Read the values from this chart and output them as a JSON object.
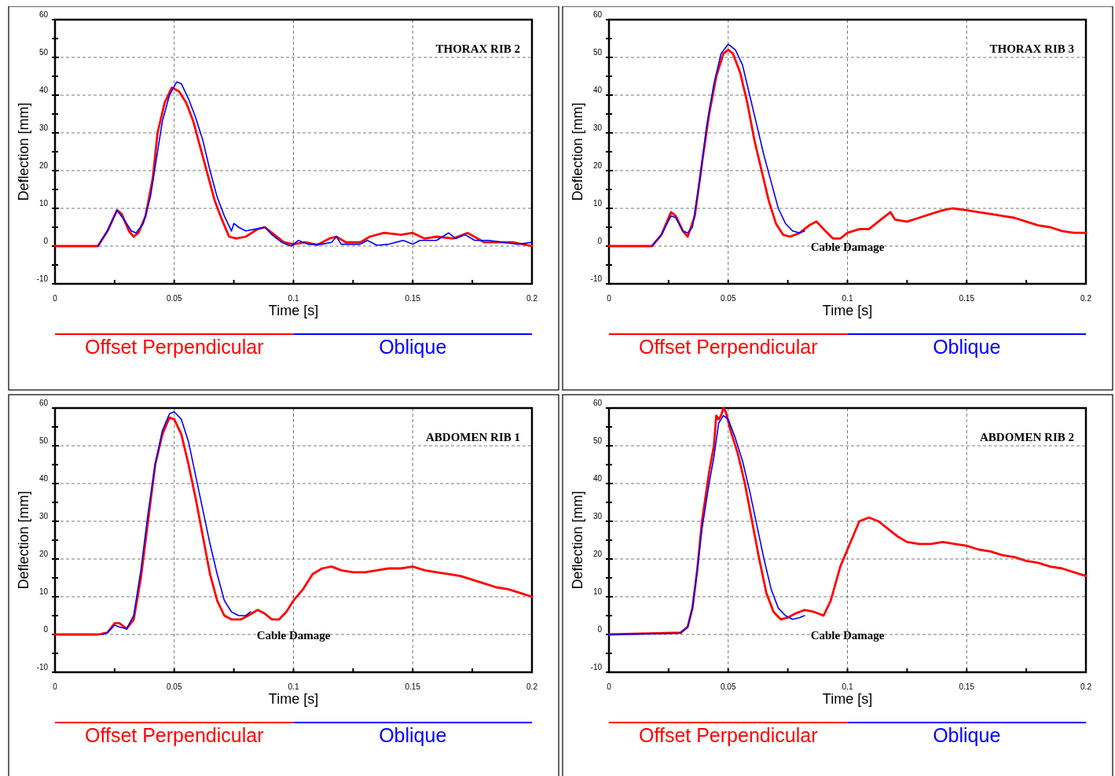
{
  "chart_data": [
    {
      "type": "line",
      "title": "THORAX RIB 2",
      "xlabel": "Time [s]",
      "ylabel": "Deflection [mm]",
      "xlim": [
        0,
        0.2
      ],
      "ylim": [
        -10,
        60
      ],
      "xticks": [
        0,
        {
          "value": 0.025,
          "label": null
        },
        0.05,
        {
          "value": 0.075,
          "label": null
        },
        0.1,
        {
          "value": 0.125,
          "label": null
        },
        0.15,
        {
          "value": 0.175,
          "label": null
        },
        0.2
      ],
      "yticks": [
        -10,
        {
          "value": -5,
          "label": null
        },
        0,
        {
          "value": 5,
          "label": null
        },
        10,
        {
          "value": 15,
          "label": null
        },
        20,
        {
          "value": 25,
          "label": null
        },
        30,
        {
          "value": 35,
          "label": null
        },
        40,
        {
          "value": 45,
          "label": null
        },
        50,
        {
          "value": 55,
          "label": null
        },
        60
      ],
      "grid": true,
      "legend": "bottom",
      "series": [
        {
          "name": "Offset Perpendicular",
          "color": "#ff0000",
          "x": [
            0,
            0.018,
            0.022,
            0.026,
            0.028,
            0.031,
            0.033,
            0.035,
            0.038,
            0.041,
            0.043,
            0.046,
            0.049,
            0.052,
            0.055,
            0.058,
            0.061,
            0.064,
            0.067,
            0.07,
            0.073,
            0.076,
            0.08,
            0.085,
            0.088,
            0.092,
            0.096,
            0.1,
            0.105,
            0.11,
            0.115,
            0.118,
            0.122,
            0.128,
            0.132,
            0.138,
            0.145,
            0.15,
            0.155,
            0.16,
            0.167,
            0.173,
            0.18,
            0.188,
            0.192,
            0.2
          ],
          "values": [
            0,
            0,
            4,
            9.5,
            8.5,
            4,
            2.5,
            3.5,
            8,
            18,
            30,
            38,
            42,
            41,
            38,
            33,
            26,
            19,
            12,
            7,
            2.5,
            2,
            2.5,
            4.5,
            5,
            3,
            1,
            0.5,
            1,
            0.3,
            2,
            2.5,
            1,
            1,
            2.5,
            3.5,
            3,
            3.5,
            2,
            2.5,
            2,
            3.5,
            1,
            1,
            1,
            0
          ]
        },
        {
          "name": "Oblique",
          "color": "#0000ff",
          "x": [
            0.018,
            0.022,
            0.026,
            0.029,
            0.032,
            0.034,
            0.037,
            0.04,
            0.043,
            0.045,
            0.048,
            0.051,
            0.053,
            0.056,
            0.059,
            0.062,
            0.065,
            0.068,
            0.071,
            0.074,
            0.075,
            0.077,
            0.08,
            0.084,
            0.088,
            0.091,
            0.095,
            0.099,
            0.102,
            0.106,
            0.112,
            0.116,
            0.118,
            0.12,
            0.128,
            0.131,
            0.135,
            0.14,
            0.146,
            0.15,
            0.153,
            0.16,
            0.165,
            0.168,
            0.172,
            0.176,
            0.182,
            0.188,
            0.194,
            0.2
          ],
          "values": [
            0,
            4,
            9.5,
            7,
            4,
            3.5,
            6,
            13,
            25,
            33,
            40,
            43.5,
            43,
            39,
            34,
            28,
            20,
            13,
            8,
            4,
            6,
            5,
            4,
            4.5,
            5,
            3,
            1,
            0,
            1.5,
            0.5,
            0.5,
            1,
            2.5,
            0.5,
            0.5,
            1.5,
            0.2,
            0.5,
            1.5,
            0.5,
            1.5,
            1.5,
            3.5,
            2,
            3,
            1.5,
            1.5,
            1,
            0.5,
            1
          ]
        }
      ]
    },
    {
      "type": "line",
      "title": "THORAX RIB 3",
      "xlabel": "Time [s]",
      "ylabel": "Deflection [mm]",
      "xlim": [
        0,
        0.2
      ],
      "ylim": [
        -10,
        60
      ],
      "xticks": [
        0,
        {
          "value": 0.025,
          "label": null
        },
        0.05,
        {
          "value": 0.075,
          "label": null
        },
        0.1,
        {
          "value": 0.125,
          "label": null
        },
        0.15,
        {
          "value": 0.175,
          "label": null
        },
        0.2
      ],
      "yticks": [
        -10,
        {
          "value": -5,
          "label": null
        },
        0,
        {
          "value": 5,
          "label": null
        },
        10,
        {
          "value": 15,
          "label": null
        },
        20,
        {
          "value": 25,
          "label": null
        },
        30,
        {
          "value": 35,
          "label": null
        },
        40,
        {
          "value": 45,
          "label": null
        },
        50,
        {
          "value": 55,
          "label": null
        },
        60
      ],
      "grid": true,
      "legend": "bottom",
      "annotations": [
        "Cable Damage"
      ],
      "series": [
        {
          "name": "Offset Perpendicular",
          "color": "#ff0000",
          "x": [
            0,
            0.018,
            0.022,
            0.026,
            0.028,
            0.031,
            0.033,
            0.036,
            0.039,
            0.042,
            0.045,
            0.048,
            0.05,
            0.052,
            0.055,
            0.058,
            0.061,
            0.064,
            0.067,
            0.07,
            0.073,
            0.076,
            0.08,
            0.084,
            0.087,
            0.09,
            0.094,
            0.097,
            0.1,
            0.105,
            0.109,
            0.114,
            0.118,
            0.12,
            0.125,
            0.13,
            0.135,
            0.14,
            0.144,
            0.15,
            0.155,
            0.16,
            0.165,
            0.17,
            0.175,
            0.18,
            0.185,
            0.19,
            0.195,
            0.2
          ],
          "values": [
            0,
            0,
            3,
            9,
            8,
            4,
            2.5,
            8,
            22,
            35,
            45,
            51,
            52,
            51,
            46,
            38,
            28,
            20,
            12,
            6,
            3,
            2.5,
            3.5,
            5.5,
            6.5,
            4.5,
            2,
            2,
            3.5,
            4.5,
            4.5,
            7,
            9,
            7,
            6.5,
            7.5,
            8.5,
            9.5,
            10,
            9.5,
            9,
            8.5,
            8,
            7.5,
            6.5,
            5.5,
            5,
            4,
            3.5,
            3.5
          ]
        },
        {
          "name": "Oblique",
          "color": "#0000ff",
          "x": [
            0.018,
            0.022,
            0.026,
            0.028,
            0.031,
            0.033,
            0.035,
            0.038,
            0.041,
            0.044,
            0.047,
            0.05,
            0.053,
            0.056,
            0.059,
            0.062,
            0.065,
            0.068,
            0.071,
            0.074,
            0.077,
            0.08,
            0.082
          ],
          "values": [
            0,
            3,
            8,
            7.5,
            4,
            3.5,
            5,
            17,
            32,
            43,
            51,
            53.5,
            52,
            48,
            40,
            32,
            24,
            17,
            10,
            6,
            4,
            3.5,
            4
          ]
        }
      ]
    },
    {
      "type": "line",
      "title": "ABDOMEN RIB 1",
      "xlabel": "Time [s]",
      "ylabel": "Deflection [mm]",
      "xlim": [
        0,
        0.2
      ],
      "ylim": [
        -10,
        60
      ],
      "xticks": [
        0,
        {
          "value": 0.025,
          "label": null
        },
        0.05,
        {
          "value": 0.075,
          "label": null
        },
        0.1,
        {
          "value": 0.125,
          "label": null
        },
        0.15,
        {
          "value": 0.175,
          "label": null
        },
        0.2
      ],
      "yticks": [
        -10,
        {
          "value": -5,
          "label": null
        },
        0,
        {
          "value": 5,
          "label": null
        },
        10,
        {
          "value": 15,
          "label": null
        },
        20,
        {
          "value": 25,
          "label": null
        },
        30,
        {
          "value": 35,
          "label": null
        },
        40,
        {
          "value": 45,
          "label": null
        },
        50,
        {
          "value": 55,
          "label": null
        },
        60
      ],
      "grid": true,
      "legend": "bottom",
      "annotations": [
        "Cable Damage"
      ],
      "series": [
        {
          "name": "Offset Perpendicular",
          "color": "#ff0000",
          "x": [
            0,
            0.018,
            0.022,
            0.025,
            0.027,
            0.03,
            0.033,
            0.036,
            0.039,
            0.042,
            0.045,
            0.048,
            0.05,
            0.053,
            0.056,
            0.059,
            0.062,
            0.065,
            0.068,
            0.071,
            0.074,
            0.078,
            0.081,
            0.085,
            0.088,
            0.091,
            0.094,
            0.097,
            0.1,
            0.104,
            0.108,
            0.112,
            0.116,
            0.12,
            0.125,
            0.13,
            0.135,
            0.14,
            0.145,
            0.15,
            0.155,
            0.16,
            0.165,
            0.17,
            0.175,
            0.18,
            0.185,
            0.19,
            0.195,
            0.2
          ],
          "values": [
            0,
            0,
            0.5,
            3,
            3,
            1.5,
            4,
            15,
            30,
            45,
            53,
            57.5,
            57,
            53,
            45,
            36,
            26,
            16,
            9,
            5,
            4,
            4,
            5,
            6.5,
            5.5,
            4,
            4,
            6,
            9,
            12,
            16,
            17.5,
            18,
            17,
            16.5,
            16.5,
            17,
            17.5,
            17.5,
            18,
            17,
            16.5,
            16,
            15.5,
            14.5,
            13.5,
            12.5,
            12,
            11,
            10
          ]
        },
        {
          "name": "Oblique",
          "color": "#0000ff",
          "x": [
            0.02,
            0.022,
            0.025,
            0.027,
            0.03,
            0.033,
            0.036,
            0.039,
            0.042,
            0.045,
            0.048,
            0.05,
            0.053,
            0.056,
            0.059,
            0.062,
            0.065,
            0.068,
            0.071,
            0.074,
            0.077,
            0.08,
            0.082
          ],
          "values": [
            0,
            0.5,
            2.5,
            2,
            1.5,
            5,
            17,
            32,
            45,
            54,
            58.5,
            59,
            57,
            51,
            42,
            33,
            24,
            16,
            9,
            6,
            5,
            5,
            6
          ]
        }
      ]
    },
    {
      "type": "line",
      "title": "ABDOMEN RIB 2",
      "xlabel": "Time [s]",
      "ylabel": "Deflection [mm]",
      "xlim": [
        0,
        0.2
      ],
      "ylim": [
        -10,
        60
      ],
      "xticks": [
        0,
        {
          "value": 0.025,
          "label": null
        },
        0.05,
        {
          "value": 0.075,
          "label": null
        },
        0.1,
        {
          "value": 0.125,
          "label": null
        },
        0.15,
        {
          "value": 0.175,
          "label": null
        },
        0.2
      ],
      "yticks": [
        -10,
        {
          "value": -5,
          "label": null
        },
        0,
        {
          "value": 5,
          "label": null
        },
        10,
        {
          "value": 15,
          "label": null
        },
        20,
        {
          "value": 25,
          "label": null
        },
        30,
        {
          "value": 35,
          "label": null
        },
        40,
        {
          "value": 45,
          "label": null
        },
        50,
        {
          "value": 55,
          "label": null
        },
        60
      ],
      "grid": true,
      "legend": "bottom",
      "annotations": [
        "Cable Damage"
      ],
      "series": [
        {
          "name": "Offset Perpendicular",
          "color": "#ff0000",
          "x": [
            0,
            0.03,
            0.033,
            0.035,
            0.037,
            0.039,
            0.042,
            0.044,
            0.045,
            0.046,
            0.047,
            0.048,
            0.049,
            0.051,
            0.054,
            0.057,
            0.06,
            0.063,
            0.066,
            0.069,
            0.072,
            0.075,
            0.078,
            0.082,
            0.086,
            0.09,
            0.093,
            0.097,
            0.101,
            0.105,
            0.109,
            0.113,
            0.117,
            0.121,
            0.125,
            0.13,
            0.135,
            0.14,
            0.145,
            0.15,
            0.155,
            0.16,
            0.165,
            0.17,
            0.175,
            0.18,
            0.185,
            0.19,
            0.195,
            0.2
          ],
          "values": [
            0,
            0.5,
            2,
            7,
            17,
            30,
            43,
            50,
            58,
            57,
            58,
            60,
            59,
            54,
            48,
            40,
            30,
            20,
            11,
            6,
            4,
            4.5,
            5.5,
            6.5,
            6,
            5,
            9,
            18,
            24,
            30,
            31,
            30,
            28,
            26,
            24.5,
            24,
            24,
            24.5,
            24,
            23.5,
            22.5,
            22,
            21,
            20.5,
            19.5,
            19,
            18,
            17.5,
            16.5,
            15.5
          ]
        },
        {
          "name": "Oblique",
          "color": "#0000ff",
          "x": [
            0,
            0.03,
            0.033,
            0.035,
            0.037,
            0.039,
            0.042,
            0.044,
            0.046,
            0.048,
            0.05,
            0.053,
            0.056,
            0.059,
            0.062,
            0.065,
            0.068,
            0.071,
            0.074,
            0.077,
            0.08,
            0.082
          ],
          "values": [
            0,
            0.3,
            2,
            7,
            17,
            28,
            40,
            47,
            56,
            58,
            57,
            52,
            46,
            38,
            29,
            20,
            12,
            7,
            5,
            4,
            4.5,
            5
          ]
        }
      ]
    }
  ]
}
